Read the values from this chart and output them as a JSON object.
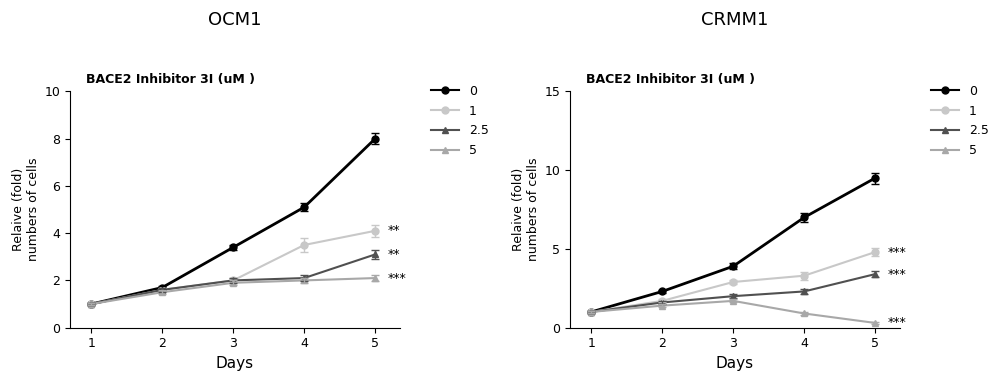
{
  "panel1_title": "OCM1",
  "panel2_title": "CRMM1",
  "subtitle": "BACE2 Inhibitor 3I (uM )",
  "xlabel": "Days",
  "ylabel": "Relaive (fold)\nnumbers of cells",
  "days": [
    1,
    2,
    3,
    4,
    5
  ],
  "ocm1": {
    "c0": {
      "mean": [
        1.0,
        1.7,
        3.4,
        5.1,
        8.0
      ],
      "err": [
        0.05,
        0.08,
        0.12,
        0.18,
        0.22
      ]
    },
    "c1": {
      "mean": [
        1.0,
        1.6,
        2.0,
        3.5,
        4.1
      ],
      "err": [
        0.05,
        0.08,
        0.12,
        0.3,
        0.25
      ]
    },
    "c2_5": {
      "mean": [
        1.0,
        1.6,
        2.0,
        2.1,
        3.1
      ],
      "err": [
        0.05,
        0.08,
        0.12,
        0.12,
        0.18
      ]
    },
    "c5": {
      "mean": [
        1.0,
        1.5,
        1.9,
        2.0,
        2.1
      ],
      "err": [
        0.05,
        0.08,
        0.1,
        0.1,
        0.12
      ]
    }
  },
  "crmm1": {
    "c0": {
      "mean": [
        1.0,
        2.3,
        3.9,
        7.0,
        9.5
      ],
      "err": [
        0.05,
        0.12,
        0.18,
        0.28,
        0.35
      ]
    },
    "c1": {
      "mean": [
        1.0,
        1.7,
        2.9,
        3.3,
        4.8
      ],
      "err": [
        0.05,
        0.1,
        0.15,
        0.25,
        0.25
      ]
    },
    "c2_5": {
      "mean": [
        1.0,
        1.6,
        2.0,
        2.3,
        3.4
      ],
      "err": [
        0.05,
        0.08,
        0.12,
        0.15,
        0.2
      ]
    },
    "c5": {
      "mean": [
        1.0,
        1.4,
        1.7,
        0.9,
        0.3
      ],
      "err": [
        0.05,
        0.08,
        0.1,
        0.08,
        0.05
      ]
    }
  },
  "colors": {
    "c0": "#000000",
    "c1": "#c8c8c8",
    "c2_5": "#505050",
    "c5": "#a8a8a8"
  },
  "legend_labels": [
    "0",
    "1",
    "2.5",
    "5"
  ],
  "ocm1_ylim": [
    0,
    10
  ],
  "crmm1_ylim": [
    0,
    15
  ],
  "ocm1_yticks": [
    0,
    2,
    4,
    6,
    8,
    10
  ],
  "crmm1_yticks": [
    0,
    5,
    10,
    15
  ],
  "ocm1_sig": [
    [
      "c1",
      "**"
    ],
    [
      "c2_5",
      "**"
    ],
    [
      "c5",
      "***"
    ]
  ],
  "crmm1_sig": [
    [
      "c1",
      "***"
    ],
    [
      "c2_5",
      "***"
    ],
    [
      "c5",
      "***"
    ]
  ],
  "background_color": "#ffffff"
}
